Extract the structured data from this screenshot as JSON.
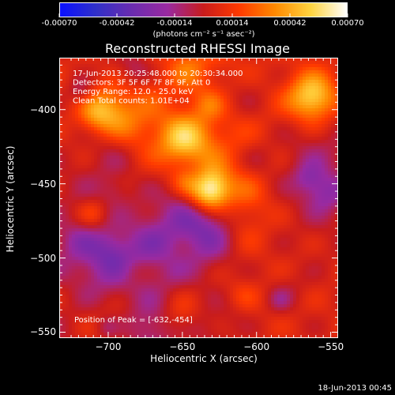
{
  "colorbar": {
    "tick_labels": [
      "-0.00070",
      "-0.00042",
      "-0.00014",
      "0.00014",
      "0.00042",
      "0.00070"
    ],
    "unit_label": "(photons cm⁻² s⁻¹ asec⁻²)",
    "min": -0.0007,
    "max": 0.0007
  },
  "footer_date": "18-Jun-2013 00:45",
  "chart_data": {
    "type": "heatmap",
    "title": "Reconstructed RHESSI Image",
    "xlabel": "Heliocentric X (arcsec)",
    "ylabel": "Heliocentric Y (arcsec)",
    "xlim": [
      -733,
      -545
    ],
    "ylim": [
      -554,
      -365
    ],
    "x_ticks": [
      -700,
      -650,
      -600,
      -550
    ],
    "y_ticks": [
      -400,
      -450,
      -500,
      -550
    ],
    "x_tick_labels": [
      "−700",
      "−650",
      "−600",
      "−550"
    ],
    "y_tick_labels": [
      "−400",
      "−450",
      "−500",
      "−550"
    ],
    "annotations": [
      "17-Jun-2013 20:25:48.000 to 20:30:34.000",
      "Detectors: 3F 5F 6F 7F 8F 9F, Att 0",
      "Energy Range: 12.0 - 25.0 keV",
      "Clean    Total counts: 1.01E+04"
    ],
    "peak_label": "Position of Peak = [-632,-454]",
    "peak": {
      "x": -632,
      "y": -454,
      "value": 0.0007
    },
    "secondary_sources": [
      {
        "x": -563,
        "y": -392,
        "value": 0.00042
      },
      {
        "x": -700,
        "y": -400,
        "value": 0.00028
      },
      {
        "x": -650,
        "y": -420,
        "value": 0.00035
      }
    ],
    "colormap": [
      "#0a10ff",
      "#3030c8",
      "#6a2cb0",
      "#9a2aa0",
      "#c81c1c",
      "#ff3a00",
      "#ff8a00",
      "#ffd440",
      "#ffffff"
    ]
  }
}
